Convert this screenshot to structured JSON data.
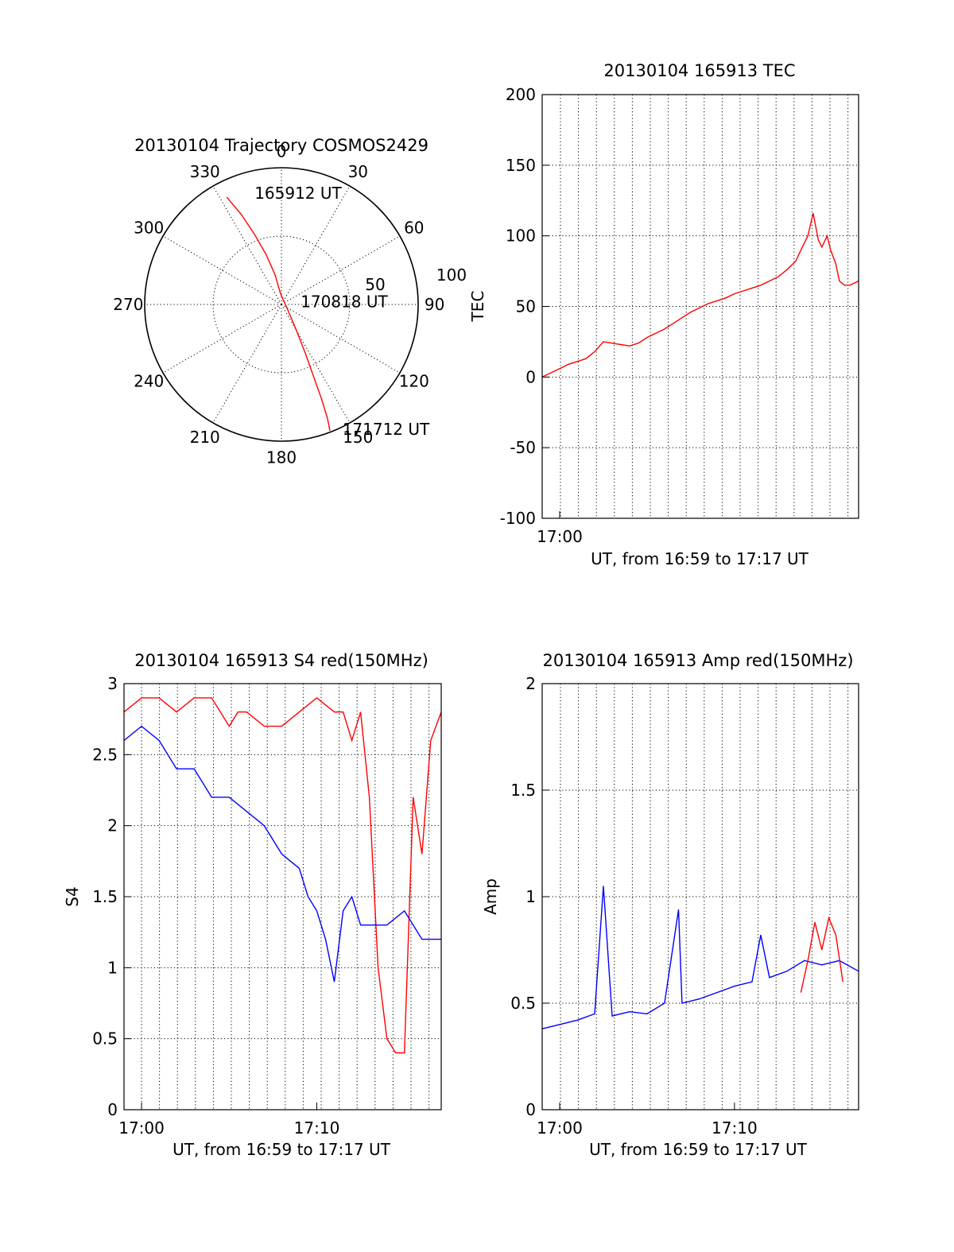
{
  "chart_data": [
    {
      "id": "trajectory",
      "type": "polar",
      "title": "20130104 Trajectory COSMOS2429",
      "angle_labels": [
        "0",
        "30",
        "60",
        "90",
        "120",
        "150",
        "180",
        "210",
        "240",
        "270",
        "300",
        "330"
      ],
      "radial_labels": [
        "50",
        "100"
      ],
      "rmax": 100,
      "series": [
        {
          "color": "#ff0000",
          "points": [
            [
              333,
              88
            ],
            [
              336,
              72
            ],
            [
              339,
              55
            ],
            [
              343,
              38
            ],
            [
              348,
              22
            ],
            [
              355,
              8
            ],
            [
              130,
              6
            ],
            [
              150,
              22
            ],
            [
              154,
              40
            ],
            [
              156,
              58
            ],
            [
              157,
              75
            ],
            [
              158,
              90
            ],
            [
              159,
              99
            ]
          ]
        }
      ],
      "annotations": [
        {
          "text": "165912 UT",
          "az": 345,
          "r": 85
        },
        {
          "text": "170818 UT",
          "az": 78,
          "r": 12
        },
        {
          "text": "171712 UT",
          "az": 155,
          "r": 100
        }
      ]
    },
    {
      "id": "tec",
      "type": "line",
      "title": "20130104 165913 TEC",
      "ylabel": "TEC",
      "xlabel": "UT, from 16:59 to 17:17 UT",
      "xlim": [
        0,
        18.1
      ],
      "ylim": [
        -100,
        200
      ],
      "yticks": [
        -100,
        -50,
        0,
        50,
        100,
        150,
        200
      ],
      "ytick_labels": [
        "-100",
        "-50",
        "0",
        "50",
        "100",
        "150",
        "200"
      ],
      "xticks": [
        1
      ],
      "xtick_labels": [
        "17:00"
      ],
      "grid": true,
      "series": [
        {
          "color": "#ff0000",
          "x": [
            0,
            0.5,
            1,
            1.5,
            2,
            2.5,
            3,
            3.5,
            4,
            4.5,
            5,
            5.5,
            6,
            6.5,
            7,
            7.5,
            8,
            8.5,
            9,
            9.5,
            10,
            10.5,
            11,
            11.5,
            12,
            12.5,
            13,
            13.5,
            14,
            14.5,
            15,
            15.2,
            15.5,
            15.8,
            16,
            16.3,
            16.5,
            16.8,
            17,
            17.3,
            17.6,
            18.1
          ],
          "y": [
            0,
            3,
            6,
            9,
            11,
            13,
            18,
            25,
            24,
            23,
            22,
            24,
            28,
            31,
            34,
            38,
            42,
            46,
            49,
            52,
            54,
            56,
            59,
            61,
            63,
            65,
            68,
            71,
            76,
            82,
            95,
            100,
            116,
            97,
            92,
            100,
            90,
            80,
            68,
            65,
            65,
            68
          ]
        }
      ]
    },
    {
      "id": "s4",
      "type": "line",
      "title": "20130104 165913 S4 red(150MHz)",
      "ylabel": "S4",
      "xlabel": "UT, from 16:59 to 17:17 UT",
      "xlim": [
        0,
        18.1
      ],
      "ylim": [
        0,
        3
      ],
      "yticks": [
        0,
        0.5,
        1,
        1.5,
        2,
        2.5,
        3
      ],
      "ytick_labels": [
        "0",
        "0.5",
        "1",
        "1.5",
        "2",
        "2.5",
        "3"
      ],
      "xticks": [
        1,
        11
      ],
      "xtick_labels": [
        "17:00",
        "17:10"
      ],
      "grid": true,
      "series": [
        {
          "name": "red",
          "color": "#ff0000",
          "x": [
            0,
            1,
            2,
            3,
            4,
            5,
            6,
            6.5,
            7,
            8,
            9,
            10,
            11,
            12,
            12.5,
            13,
            13.5,
            14,
            14.5,
            15,
            15.5,
            16,
            16.5,
            17,
            17.5,
            18.1
          ],
          "y": [
            2.8,
            2.9,
            2.9,
            2.8,
            2.9,
            2.9,
            2.7,
            2.8,
            2.8,
            2.7,
            2.7,
            2.8,
            2.9,
            2.8,
            2.8,
            2.6,
            2.8,
            2.2,
            1.0,
            0.5,
            0.4,
            0.4,
            2.2,
            1.8,
            2.6,
            2.8
          ]
        },
        {
          "name": "blue",
          "color": "#0000ff",
          "x": [
            0,
            1,
            2,
            3,
            4,
            5,
            6,
            7,
            8,
            9,
            10,
            10.5,
            11,
            11.5,
            12,
            12.5,
            13,
            13.5,
            14,
            15,
            16,
            17,
            18.1
          ],
          "y": [
            2.6,
            2.7,
            2.6,
            2.4,
            2.4,
            2.2,
            2.2,
            2.1,
            2.0,
            1.8,
            1.7,
            1.5,
            1.4,
            1.2,
            0.9,
            1.4,
            1.5,
            1.3,
            1.3,
            1.3,
            1.4,
            1.2,
            1.2
          ]
        }
      ]
    },
    {
      "id": "amp",
      "type": "line",
      "title": "20130104 165913 Amp red(150MHz)",
      "ylabel": "Amp",
      "xlabel": "UT, from 16:59 to 17:17 UT",
      "xlim": [
        0,
        18.1
      ],
      "ylim": [
        0,
        2
      ],
      "yticks": [
        0,
        0.5,
        1,
        1.5,
        2
      ],
      "ytick_labels": [
        "0",
        "0.5",
        "1",
        "1.5",
        "2"
      ],
      "xticks": [
        1,
        11
      ],
      "xtick_labels": [
        "17:00",
        "17:10"
      ],
      "grid": true,
      "series": [
        {
          "name": "blue",
          "color": "#0000ff",
          "x": [
            0,
            1,
            2,
            3,
            3.5,
            4,
            5,
            6,
            7,
            7.8,
            8,
            9,
            10,
            11,
            12,
            12.5,
            13,
            14,
            15,
            16,
            17,
            18.1
          ],
          "y": [
            0.38,
            0.4,
            0.42,
            0.45,
            1.05,
            0.44,
            0.46,
            0.45,
            0.5,
            0.94,
            0.5,
            0.52,
            0.55,
            0.58,
            0.6,
            0.82,
            0.62,
            0.65,
            0.7,
            0.68,
            0.7,
            0.65
          ]
        },
        {
          "name": "red",
          "color": "#ff0000",
          "x": [
            14.8,
            15.2,
            15.6,
            16,
            16.4,
            16.8,
            17.2
          ],
          "y": [
            0.55,
            0.7,
            0.88,
            0.75,
            0.9,
            0.82,
            0.6
          ]
        }
      ]
    }
  ]
}
